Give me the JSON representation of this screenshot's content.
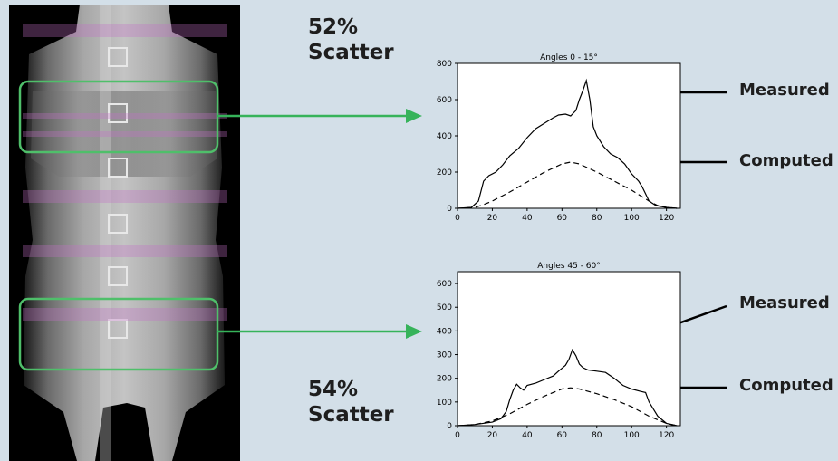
{
  "annotations": {
    "top_scatter": {
      "value": "52%",
      "word": "Scatter"
    },
    "bottom_scatter": {
      "value": "54%",
      "word": "Scatter"
    },
    "measured": "Measured",
    "computed": "Computed"
  },
  "colors": {
    "background": "#d3dfe8",
    "roi_box": "#4fbf6a",
    "arrow_green": "#36b35a",
    "slice_band": "#c470c8",
    "curve": "#000000",
    "text": "#1e1e1e"
  },
  "image": {
    "description_icon": "ct-scout-scan-image",
    "roi_count": 2
  },
  "chart_data": [
    {
      "type": "line",
      "title": "Angles 0 - 15°",
      "xlabel": "",
      "ylabel": "",
      "xlim": [
        0,
        128
      ],
      "ylim": [
        0,
        800
      ],
      "xticks": [
        "0",
        "20",
        "40",
        "60",
        "80",
        "100",
        "120"
      ],
      "yticks": [
        "0",
        "200",
        "400",
        "600",
        "800"
      ],
      "grid": false,
      "series": [
        {
          "style": "solid",
          "x": [
            0,
            8,
            12,
            15,
            18,
            22,
            26,
            30,
            35,
            40,
            45,
            50,
            55,
            58,
            62,
            65,
            68,
            70,
            72,
            74,
            76,
            78,
            80,
            84,
            88,
            92,
            96,
            100,
            104,
            106,
            108,
            110,
            114,
            120,
            126
          ],
          "y": [
            0,
            5,
            40,
            150,
            180,
            200,
            240,
            290,
            330,
            390,
            440,
            470,
            500,
            515,
            520,
            510,
            540,
            600,
            650,
            705,
            600,
            450,
            400,
            340,
            300,
            280,
            245,
            190,
            150,
            120,
            80,
            40,
            15,
            5,
            0
          ]
        },
        {
          "style": "dashed",
          "x": [
            0,
            10,
            15,
            20,
            30,
            40,
            50,
            60,
            65,
            70,
            80,
            90,
            100,
            110,
            115,
            120,
            126
          ],
          "y": [
            0,
            5,
            20,
            40,
            90,
            145,
            200,
            245,
            255,
            245,
            200,
            150,
            100,
            40,
            15,
            5,
            0
          ]
        }
      ]
    },
    {
      "type": "line",
      "title": "Angles 45 - 60°",
      "xlabel": "",
      "ylabel": "",
      "xlim": [
        0,
        128
      ],
      "ylim": [
        0,
        650
      ],
      "xticks": [
        "0",
        "20",
        "40",
        "60",
        "80",
        "100",
        "120"
      ],
      "yticks": [
        "0",
        "100",
        "200",
        "300",
        "400",
        "500",
        "600"
      ],
      "grid": false,
      "series": [
        {
          "style": "solid",
          "x": [
            0,
            10,
            20,
            25,
            28,
            30,
            32,
            34,
            36,
            38,
            40,
            45,
            50,
            55,
            58,
            62,
            64,
            66,
            68,
            70,
            72,
            75,
            80,
            85,
            90,
            95,
            100,
            105,
            108,
            110,
            115,
            120,
            126
          ],
          "y": [
            0,
            5,
            15,
            30,
            60,
            110,
            150,
            175,
            160,
            150,
            170,
            180,
            195,
            210,
            230,
            255,
            280,
            320,
            295,
            260,
            245,
            235,
            230,
            225,
            200,
            170,
            155,
            145,
            140,
            100,
            40,
            10,
            0
          ]
        },
        {
          "style": "dashed",
          "x": [
            0,
            10,
            20,
            30,
            40,
            50,
            60,
            65,
            70,
            80,
            90,
            100,
            110,
            120,
            126
          ],
          "y": [
            0,
            5,
            20,
            50,
            90,
            125,
            155,
            160,
            155,
            135,
            110,
            80,
            40,
            10,
            0
          ]
        }
      ]
    }
  ]
}
